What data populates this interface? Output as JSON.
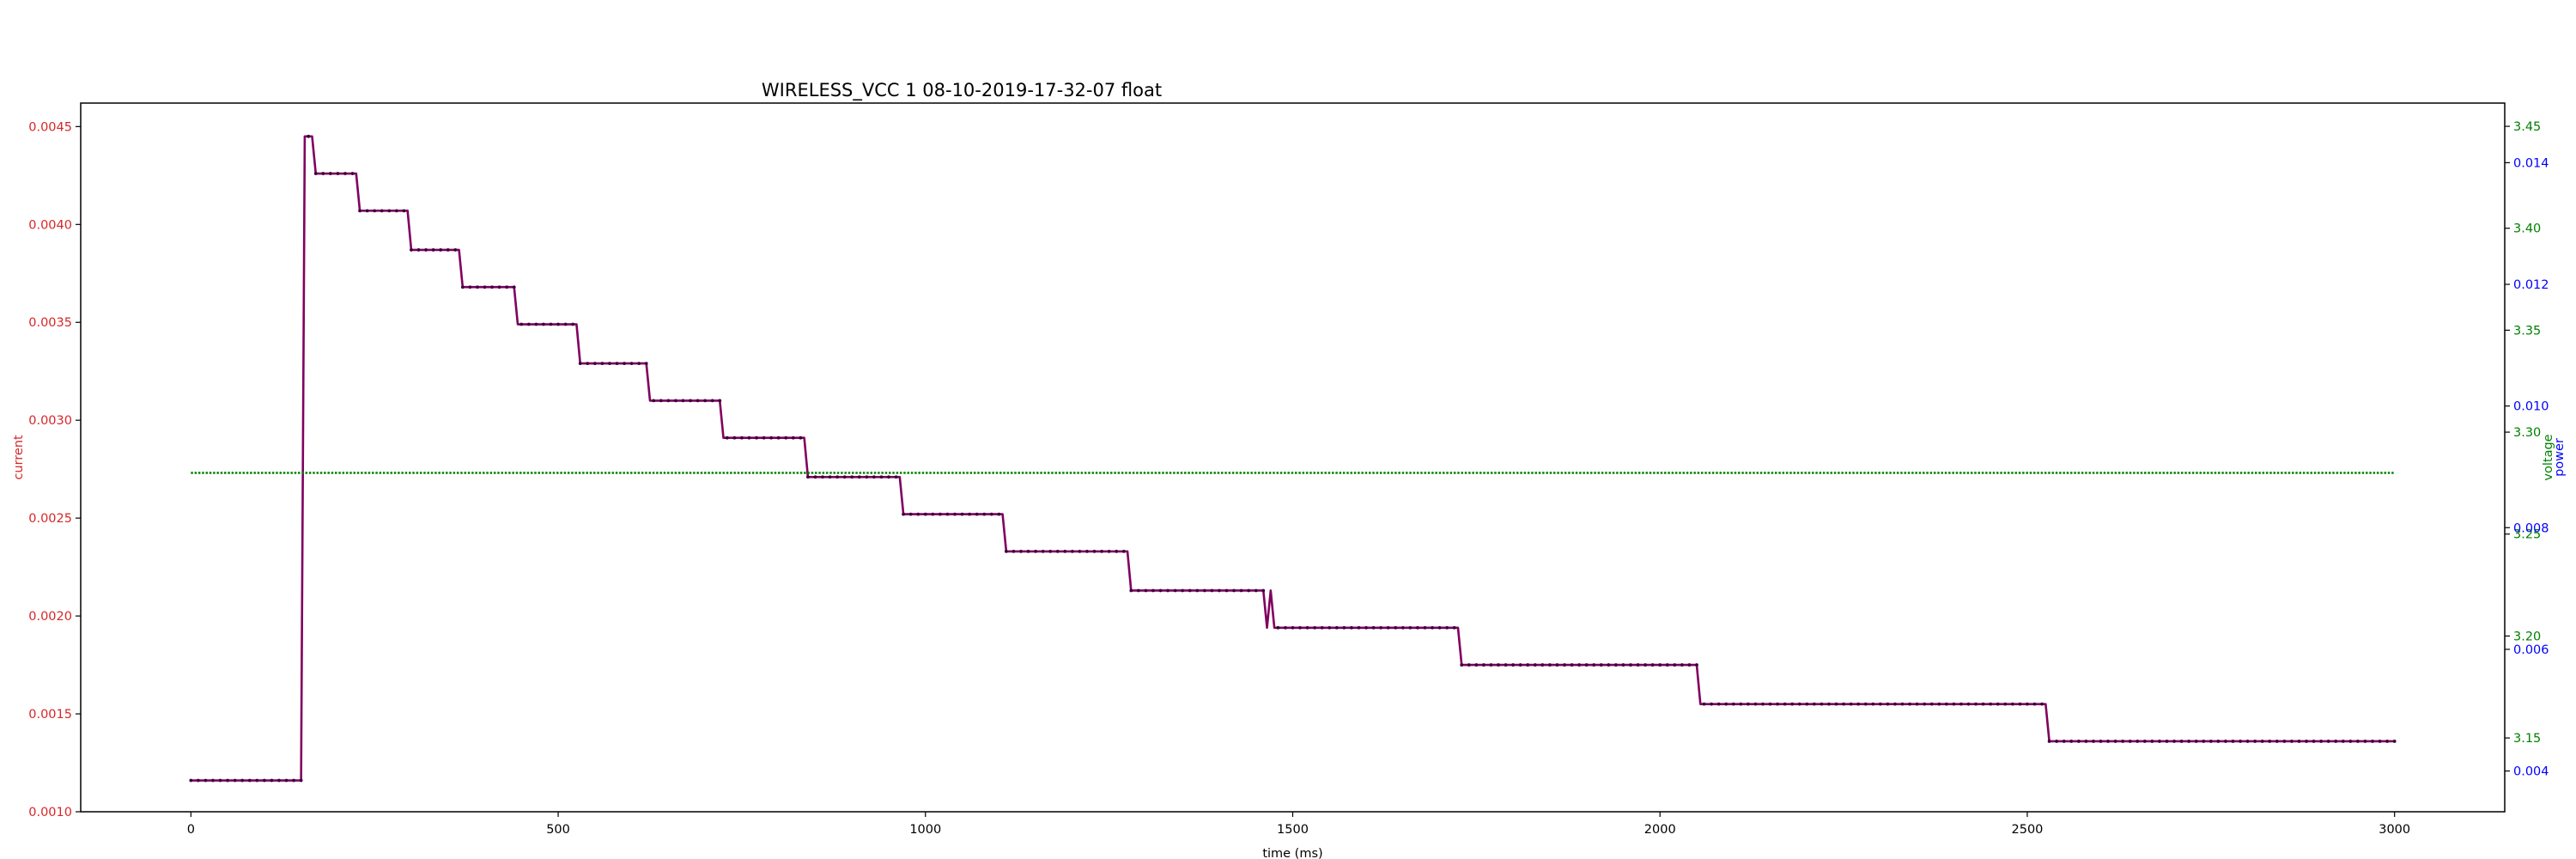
{
  "chart_data": {
    "type": "line",
    "title": "WIRELESS_VCC   1   08-10-2019-17-32-07   float",
    "xlabel": "time (ms)",
    "xlim": [
      -150,
      3150
    ],
    "x_ticks": [
      0,
      500,
      1000,
      1500,
      2000,
      2500,
      3000
    ],
    "grid": false,
    "axes": {
      "current": {
        "label": "current",
        "color": "#d62728",
        "side": "left",
        "lim": [
          0.001,
          0.00462
        ],
        "ticks": [
          "0.0010",
          "0.0015",
          "0.0020",
          "0.0025",
          "0.0030",
          "0.0035",
          "0.0040",
          "0.0045"
        ]
      },
      "voltage": {
        "label": "voltage",
        "color": "#008000",
        "side": "right",
        "lim": [
          3.1138,
          3.4614
        ],
        "ticks": [
          "3.15",
          "3.20",
          "3.25",
          "3.30",
          "3.35",
          "3.40",
          "3.45"
        ]
      },
      "power": {
        "label": "power",
        "color": "#0000ff",
        "side": "right",
        "lim": [
          0.00333,
          0.01498
        ],
        "ticks": [
          "0.004",
          "0.006",
          "0.008",
          "0.010",
          "0.012",
          "0.014"
        ]
      }
    },
    "series": [
      {
        "axis": "current",
        "color": "#d62728",
        "overlay_color": "#0000ff",
        "blend_color": "#800060",
        "markers": true,
        "marker_step": 10,
        "x": [
          0,
          150,
          155,
          160,
          165,
          170,
          225,
          230,
          295,
          300,
          365,
          370,
          440,
          445,
          525,
          530,
          620,
          625,
          720,
          725,
          835,
          840,
          965,
          970,
          1105,
          1110,
          1275,
          1280,
          1460,
          1465,
          1470,
          1475,
          1480,
          1725,
          1730,
          2050,
          2055,
          2525,
          2530,
          3000
        ],
        "y": [
          0.00116,
          0.00116,
          0.00445,
          0.00445,
          0.00445,
          0.00426,
          0.00426,
          0.00407,
          0.00407,
          0.00387,
          0.00387,
          0.00368,
          0.00368,
          0.00349,
          0.00349,
          0.00329,
          0.00329,
          0.0031,
          0.0031,
          0.00291,
          0.00291,
          0.00271,
          0.00271,
          0.00252,
          0.00252,
          0.00233,
          0.00233,
          0.00213,
          0.00213,
          0.00194,
          0.00213,
          0.00194,
          0.00194,
          0.00194,
          0.00175,
          0.00175,
          0.00155,
          0.00155,
          0.00136,
          0.00136
        ]
      },
      {
        "axis": "voltage",
        "color": "#008000",
        "style": "dotted",
        "x": [
          0,
          3000
        ],
        "y": [
          3.28,
          3.28
        ]
      }
    ]
  }
}
